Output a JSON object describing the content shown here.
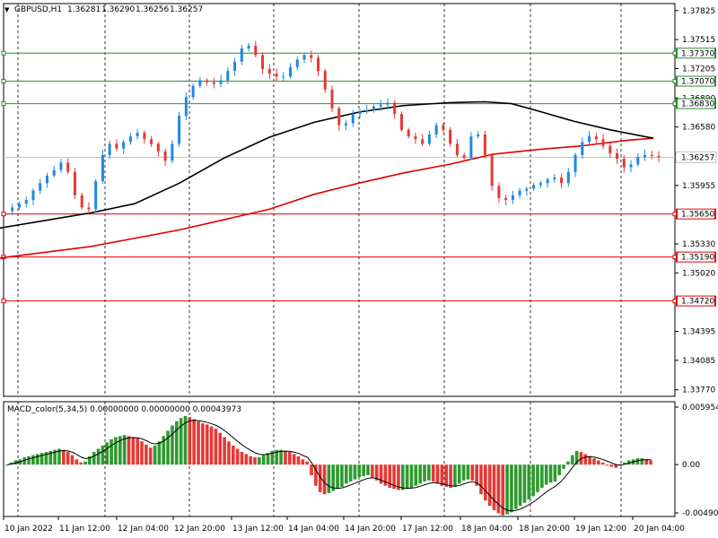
{
  "chart_data": [
    {
      "type": "candlestick",
      "header": {
        "symbol": "GBPUSD,H1",
        "open": "1.36281",
        "high": "1.36290",
        "low": "1.36256",
        "close": "1.36257"
      },
      "ylim": [
        1.337,
        1.379
      ],
      "y_ticks": [
        "1.37825",
        "1.37515",
        "1.37205",
        "1.36890",
        "1.36580",
        "1.36257",
        "1.35955",
        "1.35650",
        "1.35330",
        "1.35020",
        "1.34710",
        "1.34395",
        "1.34085",
        "1.33770"
      ],
      "current_price": {
        "label": "1.36257",
        "value": 1.36257
      },
      "x_ticks": [
        "10 Jan 2022",
        "11 Jan 12:00",
        "12 Jan 04:00",
        "12 Jan 20:00",
        "13 Jan 12:00",
        "14 Jan 04:00",
        "14 Jan 20:00",
        "17 Jan 12:00",
        "18 Jan 04:00",
        "18 Jan 20:00",
        "19 Jan 12:00",
        "20 Jan 04:00"
      ],
      "grid": true,
      "colors": {
        "bull": "#1e88e5",
        "bear": "#e53935",
        "ma_fast": "#000000",
        "ma_slow": "#e00000",
        "green_level": "#2e8b2e",
        "red_level": "#e00000"
      },
      "green_levels": [
        {
          "label": "1.37370",
          "value": 1.3737
        },
        {
          "label": "1.37070",
          "value": 1.3707
        },
        {
          "label": "1.36830",
          "value": 1.3683
        }
      ],
      "red_levels": [
        {
          "label": "1.35650",
          "value": 1.3565
        },
        {
          "label": "1.35190",
          "value": 1.3519
        },
        {
          "label": "1.34720",
          "value": 1.3472
        }
      ],
      "close_path": [
        1.3568,
        1.3572,
        1.3576,
        1.358,
        1.359,
        1.3598,
        1.3606,
        1.3612,
        1.362,
        1.361,
        1.3585,
        1.3572,
        1.357,
        1.36,
        1.3628,
        1.364,
        1.3635,
        1.3642,
        1.3648,
        1.3652,
        1.3645,
        1.364,
        1.3632,
        1.3622,
        1.364,
        1.367,
        1.369,
        1.3702,
        1.3708,
        1.3706,
        1.3704,
        1.3708,
        1.3718,
        1.3728,
        1.3742,
        1.3745,
        1.3735,
        1.372,
        1.3715,
        1.3712,
        1.3712,
        1.3722,
        1.373,
        1.3735,
        1.3732,
        1.3718,
        1.3698,
        1.3678,
        1.366,
        1.3662,
        1.3672,
        1.3675,
        1.3676,
        1.368,
        1.3682,
        1.3684,
        1.3672,
        1.3655,
        1.3648,
        1.3645,
        1.364,
        1.365,
        1.366,
        1.3655,
        1.364,
        1.3628,
        1.3625,
        1.3648,
        1.365,
        1.3628,
        1.3595,
        1.3582,
        1.358,
        1.3585,
        1.359,
        1.3592,
        1.3596,
        1.3598,
        1.3602,
        1.3604,
        1.3598,
        1.361,
        1.3628,
        1.3642,
        1.3648,
        1.3645,
        1.3638,
        1.363,
        1.3624,
        1.3615,
        1.3618,
        1.3626,
        1.3628,
        1.3627,
        1.36257
      ],
      "ma_fast": [
        [
          0,
          1.355
        ],
        [
          100,
          1.3566
        ],
        [
          150,
          1.3576
        ],
        [
          200,
          1.3598
        ],
        [
          250,
          1.3625
        ],
        [
          300,
          1.3647
        ],
        [
          350,
          1.3663
        ],
        [
          400,
          1.3674
        ],
        [
          450,
          1.3681
        ],
        [
          500,
          1.3684
        ],
        [
          540,
          1.3685
        ],
        [
          570,
          1.3683
        ],
        [
          600,
          1.3675
        ],
        [
          640,
          1.3664
        ],
        [
          680,
          1.3655
        ],
        [
          728,
          1.3646
        ]
      ],
      "ma_slow": [
        [
          0,
          1.3518
        ],
        [
          100,
          1.353
        ],
        [
          200,
          1.3548
        ],
        [
          300,
          1.357
        ],
        [
          350,
          1.3586
        ],
        [
          400,
          1.3598
        ],
        [
          450,
          1.3609
        ],
        [
          500,
          1.3618
        ],
        [
          550,
          1.3629
        ],
        [
          600,
          1.3634
        ],
        [
          650,
          1.3638
        ],
        [
          700,
          1.3644
        ],
        [
          728,
          1.3646
        ]
      ]
    },
    {
      "type": "histogram",
      "title": "MACD_color(5,34,5) 0.00000000 0.00000000 0.00043973",
      "y_ticks": [
        "0.0059544",
        "0.00",
        "-0.004906"
      ],
      "ylim": [
        -0.004906,
        0.0059544
      ],
      "colors": {
        "up": "#2e9a2e",
        "down": "#e53935",
        "signal": "#000000"
      },
      "values": [
        0.0,
        0.0002,
        0.0004,
        0.0005,
        0.0007,
        0.0008,
        0.0009,
        0.001,
        0.0011,
        0.0012,
        0.0013,
        0.0014,
        0.0015,
        0.0014,
        0.0012,
        0.0009,
        0.0005,
        0.0002,
        0.0003,
        0.0008,
        0.0012,
        0.0015,
        0.0018,
        0.0021,
        0.0024,
        0.0026,
        0.0027,
        0.0028,
        0.0027,
        0.0026,
        0.0025,
        0.0022,
        0.0019,
        0.0016,
        0.0018,
        0.0022,
        0.0027,
        0.0032,
        0.0037,
        0.0041,
        0.0044,
        0.0046,
        0.0045,
        0.0043,
        0.0041,
        0.0039,
        0.0038,
        0.0036,
        0.0034,
        0.003,
        0.0026,
        0.0022,
        0.0018,
        0.0015,
        0.0012,
        0.001,
        0.0008,
        0.0007,
        0.0007,
        0.0009,
        0.0011,
        0.0013,
        0.0014,
        0.0014,
        0.0013,
        0.0012,
        0.001,
        0.0008,
        0.0005,
        0.0003,
        -0.001,
        -0.002,
        -0.0026,
        -0.0028,
        -0.0027,
        -0.0025,
        -0.0023,
        -0.0021,
        -0.0018,
        -0.0016,
        -0.0014,
        -0.0012,
        -0.0011,
        -0.001,
        -0.0012,
        -0.0015,
        -0.0018,
        -0.002,
        -0.0022,
        -0.0023,
        -0.0024,
        -0.0024,
        -0.0023,
        -0.0022,
        -0.002,
        -0.0018,
        -0.0016,
        -0.0015,
        -0.0016,
        -0.0018,
        -0.002,
        -0.0021,
        -0.0022,
        -0.0021,
        -0.0018,
        -0.0015,
        -0.0014,
        -0.0015,
        -0.002,
        -0.0028,
        -0.0034,
        -0.0039,
        -0.0043,
        -0.0046,
        -0.0048,
        -0.0047,
        -0.0045,
        -0.0042,
        -0.0039,
        -0.0036,
        -0.0033,
        -0.003,
        -0.0026,
        -0.0022,
        -0.0019,
        -0.0017,
        -0.0016,
        -0.001,
        -0.0004,
        0.0003,
        0.0009,
        0.0013,
        0.0012,
        0.001,
        0.0008,
        0.0006,
        0.0004,
        0.0002,
        0.0,
        -0.0002,
        -0.0003,
        -0.0001,
        0.0002,
        0.0004,
        0.0005,
        0.0006,
        0.0006,
        0.0005,
        0.0004
      ]
    }
  ]
}
